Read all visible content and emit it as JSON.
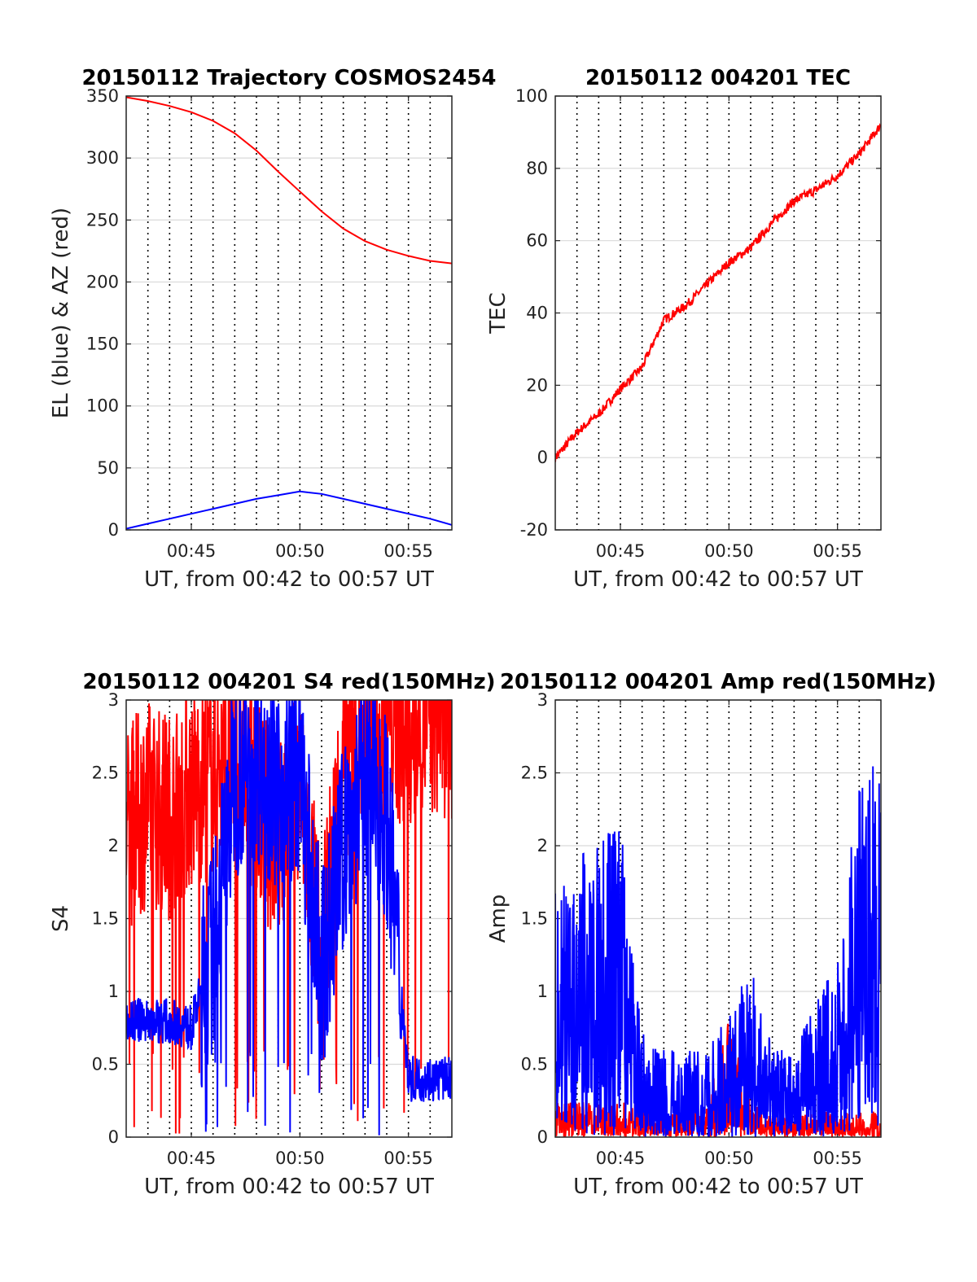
{
  "colors": {
    "red": "#ff0000",
    "blue": "#0000ff",
    "grid": "#d9d9d9",
    "axis": "#222222"
  },
  "chart_data": [
    {
      "id": "trajectory",
      "type": "line",
      "title": "20150112 Trajectory COSMOS2454",
      "xlabel": "UT, from 00:42 to 00:57 UT",
      "ylabel": "EL (blue) & AZ (red)",
      "xlim": [
        "00:42",
        "00:57"
      ],
      "ylim": [
        0,
        350
      ],
      "yticks": [
        "0",
        "50",
        "100",
        "150",
        "200",
        "250",
        "300",
        "350"
      ],
      "xticks": [
        "00:45",
        "00:50",
        "00:55"
      ],
      "grid": true,
      "x": [
        "00:42",
        "00:43",
        "00:44",
        "00:45",
        "00:46",
        "00:47",
        "00:48",
        "00:49",
        "00:50",
        "00:51",
        "00:52",
        "00:53",
        "00:54",
        "00:55",
        "00:56",
        "00:57"
      ],
      "series": [
        {
          "color": "#ff0000",
          "values": [
            349,
            346,
            342,
            337,
            330,
            320,
            306,
            289,
            273,
            257,
            243,
            233,
            226,
            221,
            217,
            215
          ]
        },
        {
          "color": "#0000ff",
          "values": [
            1,
            5,
            9,
            13,
            17,
            21,
            25,
            28,
            31,
            29,
            25,
            21,
            17,
            13,
            9,
            4
          ]
        }
      ]
    },
    {
      "id": "tec",
      "type": "line",
      "title": "20150112 004201 TEC",
      "xlabel": "UT, from 00:42 to 00:57 UT",
      "ylabel": "TEC",
      "xlim": [
        "00:42",
        "00:57"
      ],
      "ylim": [
        -20,
        100
      ],
      "yticks": [
        "-20",
        "0",
        "20",
        "40",
        "60",
        "80",
        "100"
      ],
      "xticks": [
        "00:45",
        "00:50",
        "00:55"
      ],
      "grid": true,
      "x": [
        "00:42",
        "00:43",
        "00:44",
        "00:45",
        "00:46",
        "00:47",
        "00:48",
        "00:49",
        "00:50",
        "00:51",
        "00:52",
        "00:53",
        "00:54",
        "00:55",
        "00:56",
        "00:57"
      ],
      "series": [
        {
          "color": "#ff0000",
          "values": [
            0,
            7,
            12,
            19,
            25,
            38,
            42,
            48,
            54,
            58,
            65,
            71,
            74,
            78,
            84,
            92
          ]
        }
      ]
    },
    {
      "id": "s4",
      "type": "line",
      "title": "20150112 004201 S4 red(150MHz)",
      "xlabel": "UT, from 00:42 to 00:57 UT",
      "ylabel": "S4",
      "xlim": [
        "00:42",
        "00:57"
      ],
      "ylim": [
        0,
        3
      ],
      "yticks": [
        "0",
        "0.5",
        "1",
        "1.5",
        "2",
        "2.5",
        "3"
      ],
      "xticks": [
        "00:45",
        "00:50",
        "00:55"
      ],
      "grid": true,
      "x": [
        "00:42",
        "00:43",
        "00:44",
        "00:45",
        "00:46",
        "00:47",
        "00:48",
        "00:49",
        "00:50",
        "00:51",
        "00:52",
        "00:53",
        "00:54",
        "00:55",
        "00:56",
        "00:57"
      ],
      "series": [
        {
          "color": "#ff0000",
          "values": [
            2.1,
            2.3,
            2.2,
            2.4,
            2.5,
            2.6,
            2.3,
            2.0,
            2.4,
            1.2,
            2.6,
            2.8,
            2.9,
            2.8,
            2.9,
            2.9
          ]
        },
        {
          "color": "#0000ff",
          "values": [
            0.8,
            0.8,
            0.8,
            0.75,
            1.3,
            2.5,
            2.6,
            2.4,
            2.5,
            1.1,
            2.0,
            2.5,
            2.2,
            0.4,
            0.4,
            0.4
          ]
        }
      ]
    },
    {
      "id": "amp",
      "type": "line",
      "title": "20150112 004201 Amp red(150MHz)",
      "xlabel": "UT, from 00:42 to 00:57 UT",
      "ylabel": "Amp",
      "xlim": [
        "00:42",
        "00:57"
      ],
      "ylim": [
        0,
        3
      ],
      "yticks": [
        "0",
        "0.5",
        "1",
        "1.5",
        "2",
        "2.5",
        "3"
      ],
      "xticks": [
        "00:45",
        "00:50",
        "00:55"
      ],
      "grid": true,
      "x": [
        "00:42",
        "00:43",
        "00:44",
        "00:45",
        "00:46",
        "00:47",
        "00:48",
        "00:49",
        "00:50",
        "00:51",
        "00:52",
        "00:53",
        "00:54",
        "00:55",
        "00:56",
        "00:57"
      ],
      "series": [
        {
          "color": "#ff0000",
          "values": [
            0.2,
            0.2,
            0.2,
            0.2,
            0.2,
            0.15,
            0.15,
            0.2,
            0.7,
            0.2,
            0.15,
            0.15,
            0.15,
            0.15,
            0.15,
            0.15
          ]
        },
        {
          "color": "#0000ff",
          "values": [
            1.5,
            1.6,
            1.7,
            1.8,
            0.6,
            0.5,
            0.5,
            0.6,
            0.7,
            1.0,
            0.5,
            0.5,
            0.8,
            1.0,
            2.2,
            2.2
          ]
        }
      ]
    }
  ]
}
